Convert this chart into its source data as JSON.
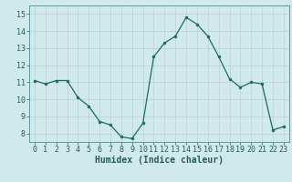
{
  "x": [
    0,
    1,
    2,
    3,
    4,
    5,
    6,
    7,
    8,
    9,
    10,
    11,
    12,
    13,
    14,
    15,
    16,
    17,
    18,
    19,
    20,
    21,
    22,
    23
  ],
  "y": [
    11.1,
    10.9,
    11.1,
    11.1,
    10.1,
    9.6,
    8.7,
    8.5,
    7.8,
    7.7,
    8.6,
    12.5,
    13.3,
    13.7,
    14.8,
    14.4,
    13.7,
    12.5,
    11.2,
    10.7,
    11.0,
    10.9,
    8.2,
    8.4
  ],
  "line_color": "#1a6b5e",
  "marker_color": "#1a6b5e",
  "bg_color": "#d0eaec",
  "grid_color": "#c0ced0",
  "xlabel": "Humidex (Indice chaleur)",
  "ylim": [
    7.5,
    15.5
  ],
  "xlim": [
    -0.5,
    23.5
  ],
  "yticks": [
    8,
    9,
    10,
    11,
    12,
    13,
    14,
    15
  ],
  "xticks": [
    0,
    1,
    2,
    3,
    4,
    5,
    6,
    7,
    8,
    9,
    10,
    11,
    12,
    13,
    14,
    15,
    16,
    17,
    18,
    19,
    20,
    21,
    22,
    23
  ],
  "tick_color": "#2a5a5a",
  "label_fontsize": 6.0,
  "xlabel_fontsize": 7.0
}
